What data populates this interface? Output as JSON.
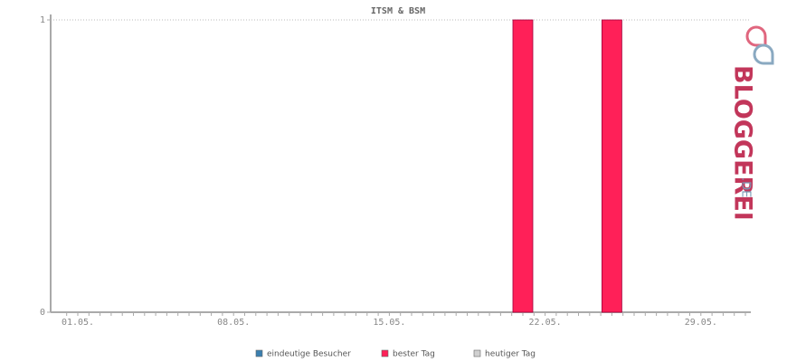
{
  "chart_data": {
    "type": "bar",
    "title": "ITSM & BSM",
    "watermark": "BLOGGEREI",
    "watermark_suffix": ".DE",
    "categories": [
      "01.05.",
      null,
      null,
      null,
      null,
      null,
      null,
      "08.05.",
      null,
      null,
      null,
      null,
      null,
      null,
      "15.05.",
      null,
      null,
      null,
      null,
      null,
      null,
      "22.05.",
      null,
      null,
      null,
      null,
      null,
      null,
      "29.05.",
      null,
      null
    ],
    "series": [
      {
        "name": "eindeutige Besucher",
        "color": "#3a7fb0",
        "values": [
          0,
          0,
          0,
          0,
          0,
          0,
          0,
          0,
          0,
          0,
          0,
          0,
          0,
          0,
          0,
          0,
          0,
          0,
          0,
          0,
          0,
          0,
          0,
          0,
          0,
          0,
          0,
          0,
          0,
          0,
          0
        ]
      },
      {
        "name": "bester Tag",
        "color": "#ff2058",
        "values": [
          0,
          0,
          0,
          0,
          0,
          0,
          0,
          0,
          0,
          0,
          0,
          0,
          0,
          0,
          0,
          0,
          0,
          0,
          0,
          0,
          1,
          0,
          0,
          0,
          1,
          0,
          0,
          0,
          0,
          0,
          0
        ]
      },
      {
        "name": "heutiger Tag",
        "color": "#d0d0d0",
        "values": [
          0,
          0,
          0,
          0,
          0,
          0,
          0,
          0,
          0,
          0,
          0,
          0,
          0,
          0,
          0,
          0,
          0,
          0,
          0,
          0,
          0,
          0,
          0,
          0,
          0,
          0,
          0,
          0,
          0,
          0,
          0
        ]
      }
    ],
    "ylim": [
      0,
      1
    ],
    "yticks": [
      0,
      1
    ],
    "grid": true
  }
}
